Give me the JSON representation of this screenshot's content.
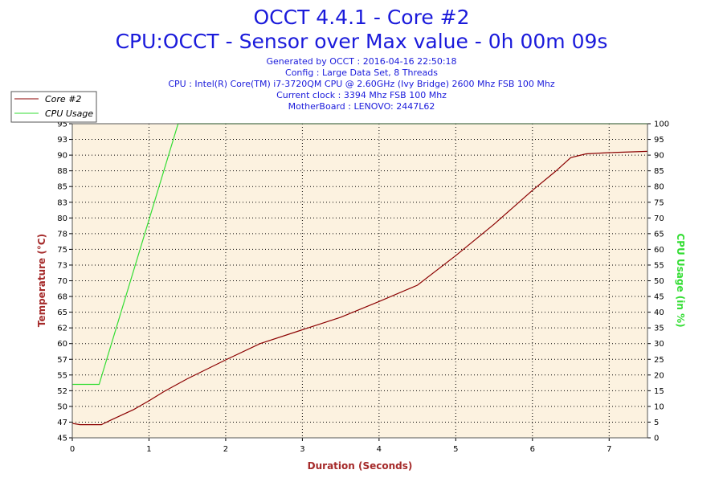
{
  "header": {
    "title": "OCCT 4.4.1 - Core #2",
    "subtitle": "CPU:OCCT - Sensor over Max value - 0h 00m 09s",
    "info_lines": [
      "Generated by OCCT : 2016-04-16 22:50:18",
      "Config : Large Data Set, 8 Threads",
      "CPU : Intel(R) Core(TM) i7-3720QM CPU @ 2.60GHz (Ivy Bridge) 2600 Mhz FSB 100 Mhz",
      "Current clock : 3394 Mhz FSB 100 Mhz",
      "MotherBoard : LENOVO: 2447L62"
    ]
  },
  "chart_data": {
    "type": "line",
    "xlabel": "Duration (Seconds)",
    "ylabel": "Temperature (°C)",
    "y2label": "CPU Usage (in %)",
    "xlim": [
      0,
      7.5
    ],
    "ylim": [
      45,
      95
    ],
    "y2lim": [
      0,
      100
    ],
    "grid": true,
    "legend_position": "top-left",
    "x_ticks": [
      "0",
      "1",
      "2",
      "3",
      "4",
      "5",
      "6",
      "7"
    ],
    "y_ticks": [
      "45",
      "47",
      "50",
      "52",
      "55",
      "57",
      "60",
      "62",
      "65",
      "68",
      "70",
      "73",
      "75",
      "78",
      "80",
      "83",
      "85",
      "88",
      "90",
      "93",
      "95"
    ],
    "y2_ticks": [
      "0",
      "5",
      "10",
      "15",
      "20",
      "25",
      "30",
      "35",
      "40",
      "45",
      "50",
      "55",
      "60",
      "65",
      "70",
      "75",
      "80",
      "85",
      "90",
      "95",
      "100"
    ],
    "series": [
      {
        "name": "Core #2",
        "axis": "left",
        "color": "#8b0000",
        "x": [
          0,
          0.1,
          0.38,
          0.5,
          0.8,
          1.0,
          1.2,
          1.5,
          2.0,
          2.45,
          3.0,
          3.5,
          4.0,
          4.5,
          5.0,
          5.5,
          6.0,
          6.3,
          6.5,
          6.7,
          7.0,
          7.5
        ],
        "y": [
          47.3,
          47.1,
          47.1,
          47.8,
          49.5,
          50.9,
          52.4,
          54.4,
          57.4,
          60.0,
          62.2,
          64.2,
          66.7,
          69.3,
          74.0,
          79.0,
          84.4,
          87.4,
          89.6,
          90.2,
          90.4,
          90.6
        ]
      },
      {
        "name": "CPU Usage",
        "axis": "right",
        "color": "#33dd33",
        "x": [
          0,
          0.35,
          1.38,
          7.5
        ],
        "y": [
          17,
          17,
          100,
          100
        ]
      }
    ]
  }
}
